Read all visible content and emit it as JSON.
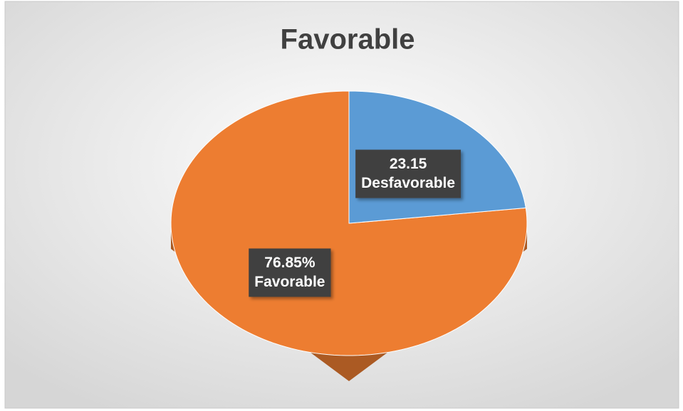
{
  "chart_data": {
    "type": "pie3d",
    "title": "Favorable",
    "categories": [
      "Favorable",
      "Desfavorable"
    ],
    "values": [
      76.85,
      23.15
    ],
    "value_labels": [
      "76.85%",
      "23.15"
    ],
    "colors": [
      "#ed7d31",
      "#5b9bd5"
    ]
  }
}
